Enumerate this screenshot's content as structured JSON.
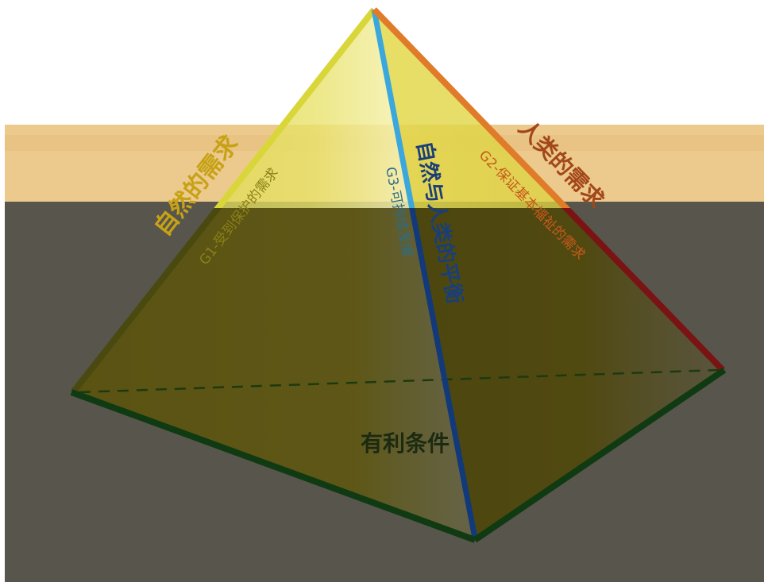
{
  "labels": {
    "nature_needs": "自然的需求",
    "g1": "G1-受到保护的需求",
    "balance": "自然与人类的平衡",
    "g3": "G3-可持续发展",
    "human_needs": "人类的需求",
    "g2": "G2-保证基本福祉的需求",
    "favorable": "有利条件"
  },
  "colors": {
    "band_top": "#ecc98d",
    "band_bottom": "#58554c",
    "edge_nature": "#d9d63a",
    "edge_balance": "#3aa7dd",
    "edge_human": "#e07b2a",
    "edge_base": "#0f3a12"
  }
}
